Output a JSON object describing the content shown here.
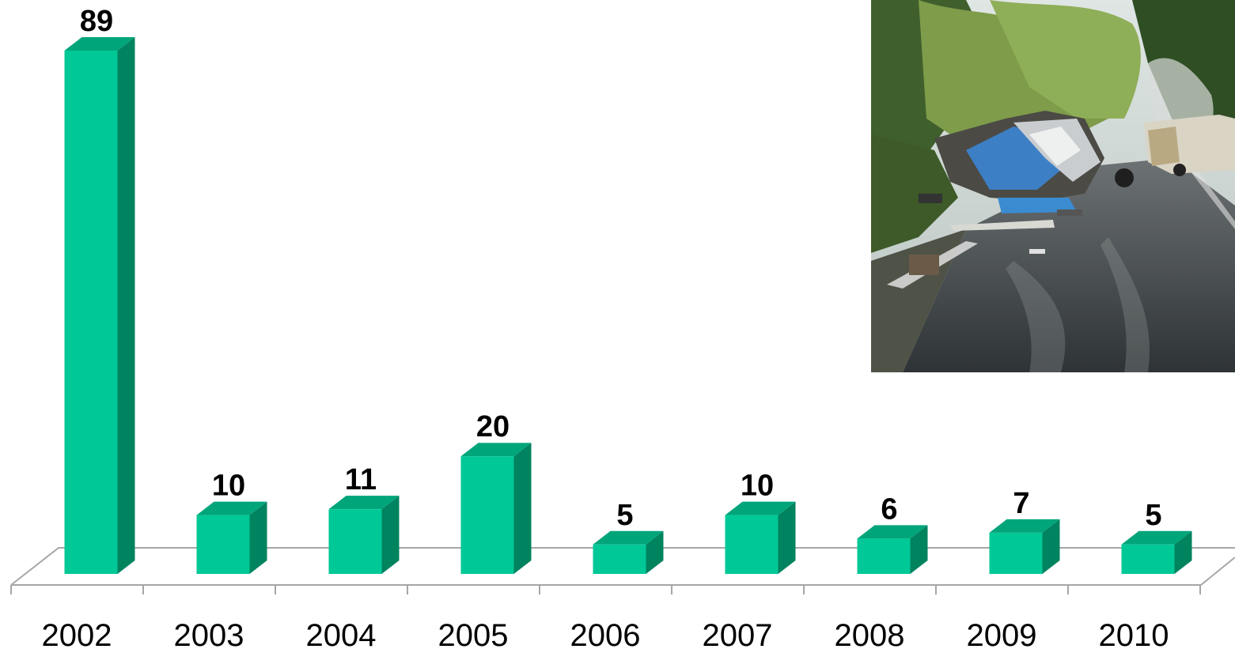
{
  "chart_data": {
    "type": "bar",
    "categories": [
      "2002",
      "2003",
      "2004",
      "2005",
      "2006",
      "2007",
      "2008",
      "2009",
      "2010"
    ],
    "values": [
      89,
      10,
      11,
      20,
      5,
      10,
      6,
      7,
      5
    ],
    "title": "",
    "xlabel": "",
    "ylabel": "",
    "ylim": [
      0,
      89
    ],
    "grid": false,
    "style": "3d-bar",
    "colors": {
      "bar_front": "#00c896",
      "bar_side": "#00835f",
      "bar_top": "#00a57a",
      "floor_line": "#a6a6a6"
    }
  },
  "photo": {
    "icon": "road-accident-photo"
  }
}
